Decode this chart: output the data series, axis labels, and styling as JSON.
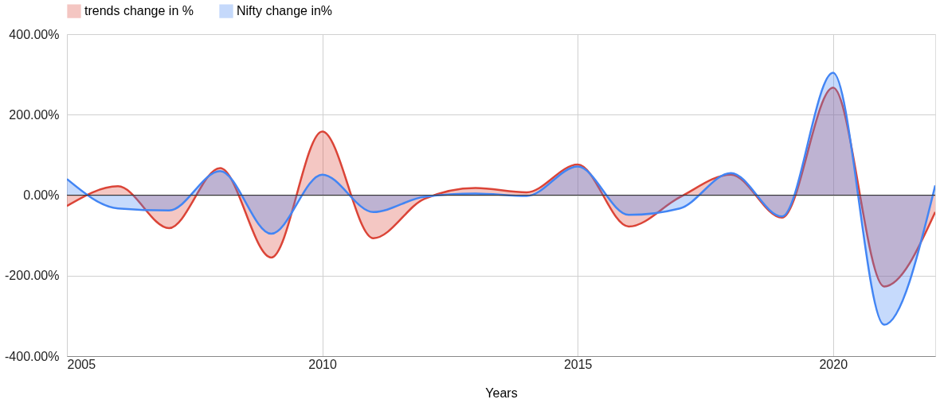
{
  "chart_data": {
    "type": "area",
    "xlabel": "Years",
    "x": [
      2005,
      2006,
      2007,
      2008,
      2009,
      2010,
      2011,
      2012,
      2013,
      2014,
      2015,
      2016,
      2017,
      2018,
      2019,
      2020,
      2021,
      2022
    ],
    "series": [
      {
        "name": "trends change in %",
        "color": "#db4437",
        "values": [
          -27,
          22,
          -82,
          67,
          -155,
          158,
          -107,
          -9,
          18,
          7,
          76,
          -78,
          -5,
          51,
          -56,
          267,
          -227,
          -42
        ]
      },
      {
        "name": "Nifty change in%",
        "color": "#4285f4",
        "values": [
          40,
          -33,
          -38,
          60,
          -96,
          51,
          -42,
          -4,
          4,
          -2,
          71,
          -49,
          -33,
          55,
          -53,
          304,
          -322,
          24
        ]
      }
    ],
    "xlim": [
      2005,
      2022
    ],
    "xticks": [
      2005,
      2010,
      2015,
      2020
    ],
    "ylim": [
      -400,
      400
    ],
    "yticks": [
      {
        "value": -400,
        "label": "-400.00%"
      },
      {
        "value": -200,
        "label": "-200.00%"
      },
      {
        "value": 0,
        "label": "0.00%"
      },
      {
        "value": 200,
        "label": "200.00%"
      },
      {
        "value": 400,
        "label": "400.00%"
      }
    ],
    "ref_lines": [
      {
        "axis": "y",
        "value": 0,
        "color": "#333333"
      }
    ],
    "grid": true,
    "legend": "top"
  }
}
